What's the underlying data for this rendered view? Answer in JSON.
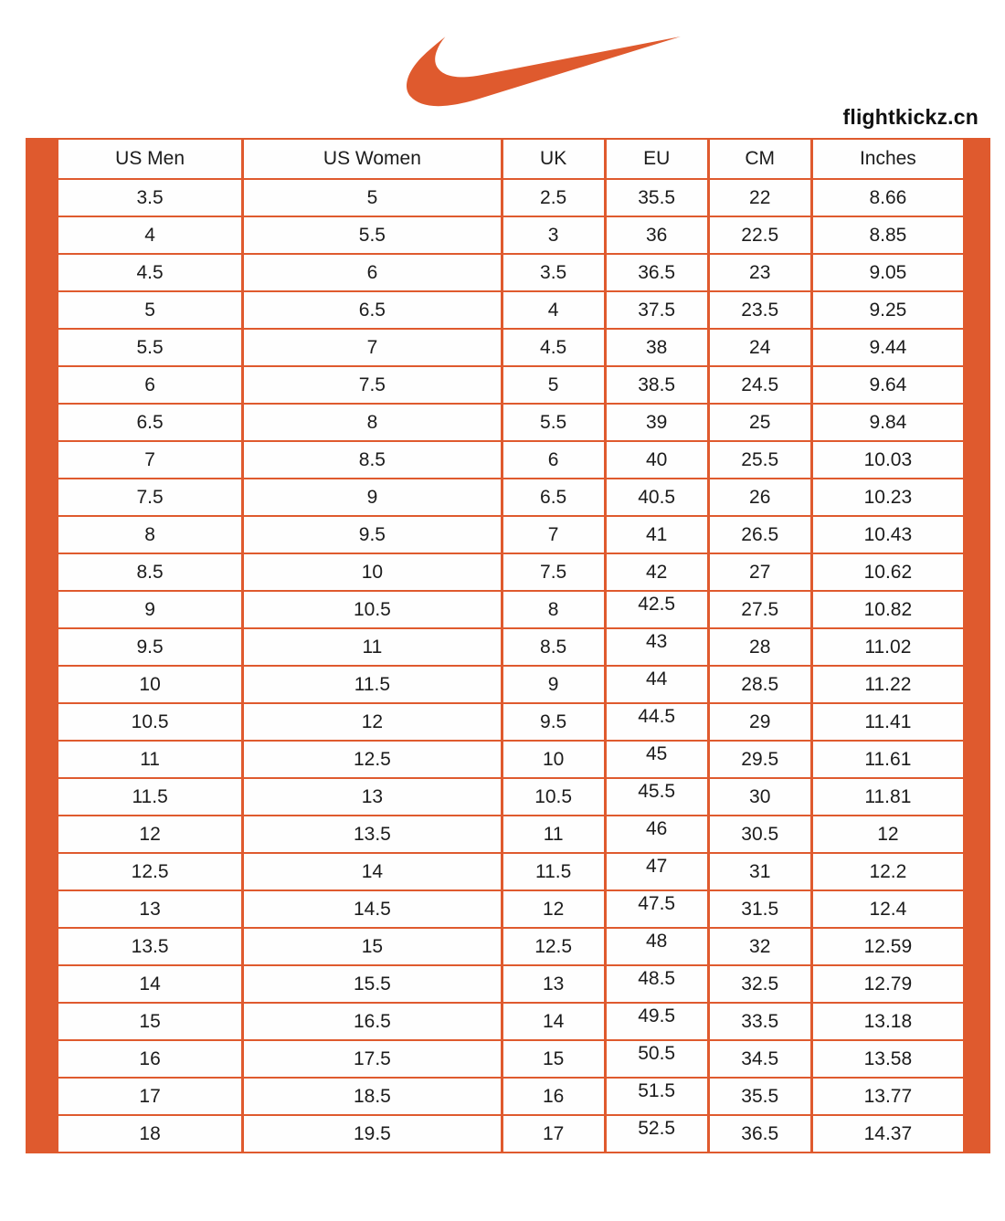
{
  "brand": {
    "logo_icon": "nike-swoosh-icon",
    "site_label": "flightkickz.cn"
  },
  "table_frame": {
    "accent_color": "#DF5A2E"
  },
  "chart_data": {
    "type": "table",
    "columns": [
      "US Men",
      "US Women",
      "UK",
      "EU",
      "CM",
      "Inches"
    ],
    "rows": [
      [
        "3.5",
        "5",
        "2.5",
        "35.5",
        "22",
        "8.66"
      ],
      [
        "4",
        "5.5",
        "3",
        "36",
        "22.5",
        "8.85"
      ],
      [
        "4.5",
        "6",
        "3.5",
        "36.5",
        "23",
        "9.05"
      ],
      [
        "5",
        "6.5",
        "4",
        "37.5",
        "23.5",
        "9.25"
      ],
      [
        "5.5",
        "7",
        "4.5",
        "38",
        "24",
        "9.44"
      ],
      [
        "6",
        "7.5",
        "5",
        "38.5",
        "24.5",
        "9.64"
      ],
      [
        "6.5",
        "8",
        "5.5",
        "39",
        "25",
        "9.84"
      ],
      [
        "7",
        "8.5",
        "6",
        "40",
        "25.5",
        "10.03"
      ],
      [
        "7.5",
        "9",
        "6.5",
        "40.5",
        "26",
        "10.23"
      ],
      [
        "8",
        "9.5",
        "7",
        "41",
        "26.5",
        "10.43"
      ],
      [
        "8.5",
        "10",
        "7.5",
        "42",
        "27",
        "10.62"
      ],
      [
        "9",
        "10.5",
        "8",
        "42.5",
        "27.5",
        "10.82"
      ],
      [
        "9.5",
        "11",
        "8.5",
        "43",
        "28",
        "11.02"
      ],
      [
        "10",
        "11.5",
        "9",
        "44",
        "28.5",
        "11.22"
      ],
      [
        "10.5",
        "12",
        "9.5",
        "44.5",
        "29",
        "11.41"
      ],
      [
        "11",
        "12.5",
        "10",
        "45",
        "29.5",
        "11.61"
      ],
      [
        "11.5",
        "13",
        "10.5",
        "45.5",
        "30",
        "11.81"
      ],
      [
        "12",
        "13.5",
        "11",
        "46",
        "30.5",
        "12"
      ],
      [
        "12.5",
        "14",
        "11.5",
        "47",
        "31",
        "12.2"
      ],
      [
        "13",
        "14.5",
        "12",
        "47.5",
        "31.5",
        "12.4"
      ],
      [
        "13.5",
        "15",
        "12.5",
        "48",
        "32",
        "12.59"
      ],
      [
        "14",
        "15.5",
        "13",
        "48.5",
        "32.5",
        "12.79"
      ],
      [
        "15",
        "16.5",
        "14",
        "49.5",
        "33.5",
        "13.18"
      ],
      [
        "16",
        "17.5",
        "15",
        "50.5",
        "34.5",
        "13.58"
      ],
      [
        "17",
        "18.5",
        "16",
        "51.5",
        "35.5",
        "13.77"
      ],
      [
        "18",
        "19.5",
        "17",
        "52.5",
        "36.5",
        "14.37"
      ]
    ],
    "eu_column_index": 3,
    "eu_top_aligned_from_index": 11,
    "legend_position": "none",
    "grid": true
  }
}
